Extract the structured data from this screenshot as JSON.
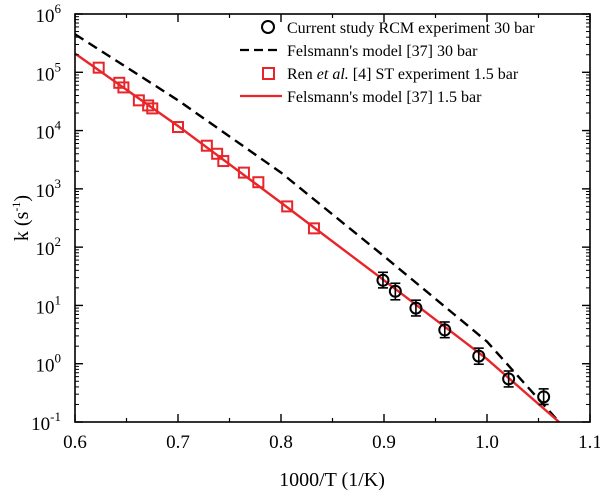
{
  "chart_data": {
    "type": "scatter",
    "xlabel": "1000/T (1/K)",
    "ylabel_main": "k (s",
    "ylabel_sup": "-1",
    "ylabel_close": ")",
    "xlim": [
      0.6,
      1.1
    ],
    "ylim": [
      0.1,
      1000000
    ],
    "yscale": "log",
    "x_ticks": [
      "0.6",
      "0.7",
      "0.8",
      "0.9",
      "1.0",
      "1.1"
    ],
    "x_tick_values": [
      0.6,
      0.7,
      0.8,
      0.9,
      1.0,
      1.1
    ],
    "y_ticks": [
      {
        "base": "10",
        "exp": "-1",
        "value": 0.1
      },
      {
        "base": "10",
        "exp": "0",
        "value": 1
      },
      {
        "base": "10",
        "exp": "1",
        "value": 10
      },
      {
        "base": "10",
        "exp": "2",
        "value": 100
      },
      {
        "base": "10",
        "exp": "3",
        "value": 1000
      },
      {
        "base": "10",
        "exp": "4",
        "value": 10000
      },
      {
        "base": "10",
        "exp": "5",
        "value": 100000
      },
      {
        "base": "10",
        "exp": "6",
        "value": 1000000
      }
    ],
    "legend_placement": "top-right",
    "series": [
      {
        "name": "Current study RCM experiment 30 bar",
        "kind": "markers-errorbars",
        "marker": "open-circle",
        "color": "#000000",
        "x": [
          0.899,
          0.911,
          0.931,
          0.959,
          0.992,
          1.021,
          1.055
        ],
        "y": [
          27,
          17.5,
          9,
          3.8,
          1.35,
          0.55,
          0.27
        ],
        "y_low": [
          20,
          12.5,
          6.6,
          2.8,
          0.98,
          0.4,
          0.2
        ],
        "y_high": [
          37,
          24,
          12.3,
          5.2,
          1.85,
          0.75,
          0.37
        ]
      },
      {
        "name": "Felsmann's model [37] 30 bar",
        "kind": "line",
        "dash": "dashed",
        "color": "#000000",
        "x": [
          0.6,
          0.7,
          0.8,
          0.9,
          1.0,
          1.07
        ],
        "y": [
          450000,
          33000,
          1900,
          70,
          2.4,
          0.1
        ]
      },
      {
        "name_pre": "Ren ",
        "name_italic": "et al.",
        "name_post": " [4] ST experiment 1.5 bar",
        "kind": "markers",
        "marker": "open-square",
        "color": "#e8262a",
        "x": [
          0.623,
          0.643,
          0.647,
          0.662,
          0.671,
          0.675,
          0.7,
          0.728,
          0.738,
          0.744,
          0.764,
          0.778,
          0.806,
          0.832
        ],
        "y": [
          120000,
          66000,
          55000,
          33000,
          27000,
          24000,
          11500,
          5500,
          4000,
          3000,
          1900,
          1300,
          500,
          210
        ]
      },
      {
        "name": "Felsmann's model [37] 1.5 bar",
        "kind": "line",
        "dash": "solid",
        "color": "#e8262a",
        "x": [
          0.6,
          0.7,
          0.8,
          0.9,
          1.0,
          1.07
        ],
        "y": [
          210000,
          12000,
          580,
          27,
          1.2,
          0.1
        ]
      }
    ]
  }
}
